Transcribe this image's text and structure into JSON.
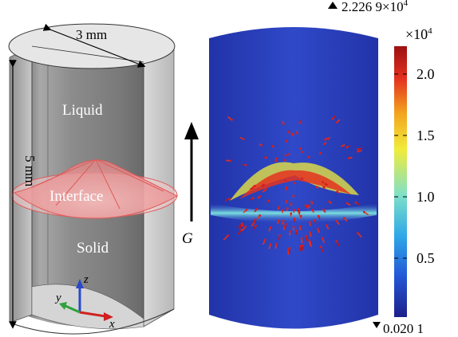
{
  "left_figure": {
    "width_label": "3 mm",
    "height_label": "5 mm",
    "region_labels": {
      "liquid": "Liquid",
      "interface": "Interface",
      "solid": "Solid"
    },
    "axes": {
      "x": "x",
      "y": "y",
      "z": "z"
    }
  },
  "gravity_label": "G",
  "colorbar": {
    "max_label": "2.226 9",
    "max_times": "×10",
    "max_exp": "4",
    "unit_scale": "×10",
    "unit_exp": "4",
    "min_label": "0.020 1",
    "ticks": [
      {
        "value": 2.0,
        "label": "2.0"
      },
      {
        "value": 1.5,
        "label": "1.5"
      },
      {
        "value": 1.0,
        "label": "1.0"
      },
      {
        "value": 0.5,
        "label": "0.5"
      }
    ],
    "min_value": 0.0201,
    "max_value": 2.2269,
    "colors": [
      "#1c1f8a",
      "#2457d6",
      "#2ea8e8",
      "#7fe0c8",
      "#f1ec3a",
      "#f3a51f",
      "#e4321f",
      "#9d1010"
    ]
  },
  "colors": {
    "cylinder_gray": "#9a9a9a",
    "interface_red": "#e05a5a",
    "field_blue": "#2f49c8"
  }
}
